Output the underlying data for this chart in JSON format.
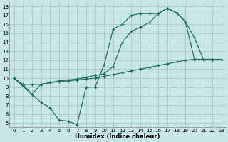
{
  "bg_color": "#c8e6e3",
  "grid_color": "#a8ccc9",
  "line_color": "#1a6b5a",
  "xlabel": "Humidex (Indice chaleur)",
  "xlim": [
    -0.5,
    23.5
  ],
  "ylim": [
    4.5,
    18.5
  ],
  "xticks": [
    0,
    1,
    2,
    3,
    4,
    5,
    6,
    7,
    8,
    9,
    10,
    11,
    12,
    13,
    14,
    15,
    16,
    17,
    18,
    19,
    20,
    21,
    22,
    23
  ],
  "yticks": [
    5,
    6,
    7,
    8,
    9,
    10,
    11,
    12,
    13,
    14,
    15,
    16,
    17,
    18
  ],
  "line1_x": [
    0,
    1,
    2,
    3,
    4,
    5,
    6,
    7,
    8,
    9,
    10,
    11,
    12,
    13,
    14,
    15,
    16,
    17,
    18,
    19,
    20,
    21,
    22
  ],
  "line1_y": [
    10,
    9.3,
    8.2,
    7.3,
    6.7,
    5.3,
    5.2,
    4.8,
    9.0,
    9.0,
    11.5,
    15.5,
    16.0,
    17.0,
    17.2,
    17.2,
    17.2,
    17.8,
    17.3,
    16.3,
    12.1,
    12.1,
    12.1
  ],
  "line2_x": [
    0,
    1,
    2,
    3,
    4,
    5,
    6,
    7,
    8,
    9,
    10,
    11,
    12,
    13,
    14,
    15,
    16,
    17,
    18,
    19,
    20,
    21,
    22,
    23
  ],
  "line2_y": [
    10,
    9.3,
    9.3,
    9.3,
    9.5,
    9.6,
    9.7,
    9.8,
    9.9,
    10.0,
    10.2,
    10.4,
    10.6,
    10.8,
    11.0,
    11.2,
    11.4,
    11.6,
    11.8,
    12.0,
    12.1,
    12.1,
    12.1,
    12.1
  ],
  "line3_x": [
    0,
    2,
    3,
    4,
    5,
    6,
    7,
    8,
    9,
    10,
    11,
    12,
    13,
    14,
    15,
    16,
    17,
    18,
    19,
    20,
    21,
    22
  ],
  "line3_y": [
    10,
    8.2,
    9.3,
    9.5,
    9.7,
    9.8,
    9.9,
    10.1,
    10.3,
    10.5,
    11.3,
    14.0,
    15.2,
    15.7,
    16.2,
    17.2,
    17.8,
    17.3,
    16.3,
    14.5,
    12.1,
    12.1
  ]
}
